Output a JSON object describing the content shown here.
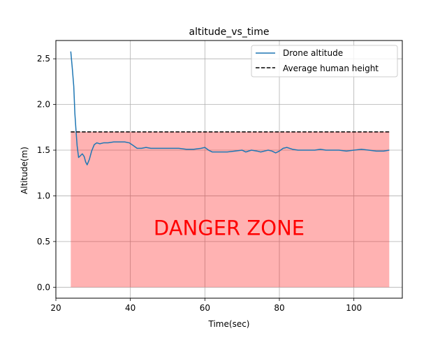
{
  "chart_data": {
    "type": "line",
    "title": "altitude_vs_time",
    "xlabel": "Time(sec)",
    "ylabel": "Altitude(m)",
    "xlim": [
      20,
      113
    ],
    "ylim": [
      -0.12,
      2.7
    ],
    "x_ticks": [
      20,
      40,
      60,
      80,
      100
    ],
    "y_ticks": [
      0.0,
      0.5,
      1.0,
      1.5,
      2.0,
      2.5
    ],
    "x_tick_labels": [
      "20",
      "40",
      "60",
      "80",
      "100"
    ],
    "y_tick_labels": [
      "0.0",
      "0.5",
      "1.0",
      "1.5",
      "2.0",
      "2.5"
    ],
    "grid": true,
    "legend_position": "top-right",
    "series": [
      {
        "name": "Drone altitude",
        "color": "#1f77b4",
        "style": "solid",
        "points": [
          [
            24.0,
            2.58
          ],
          [
            24.4,
            2.4
          ],
          [
            24.8,
            2.2
          ],
          [
            25.1,
            1.9
          ],
          [
            25.4,
            1.72
          ],
          [
            25.7,
            1.55
          ],
          [
            26.1,
            1.42
          ],
          [
            26.6,
            1.44
          ],
          [
            27.1,
            1.46
          ],
          [
            27.6,
            1.43
          ],
          [
            28.0,
            1.37
          ],
          [
            28.4,
            1.34
          ],
          [
            29.0,
            1.4
          ],
          [
            29.6,
            1.49
          ],
          [
            30.3,
            1.56
          ],
          [
            31.0,
            1.58
          ],
          [
            31.8,
            1.57
          ],
          [
            32.8,
            1.58
          ],
          [
            34.0,
            1.58
          ],
          [
            35.5,
            1.59
          ],
          [
            37.0,
            1.59
          ],
          [
            38.5,
            1.59
          ],
          [
            39.7,
            1.58
          ],
          [
            40.8,
            1.55
          ],
          [
            41.8,
            1.52
          ],
          [
            43.0,
            1.52
          ],
          [
            44.2,
            1.53
          ],
          [
            45.5,
            1.52
          ],
          [
            47.0,
            1.52
          ],
          [
            49.0,
            1.52
          ],
          [
            51.0,
            1.52
          ],
          [
            53.0,
            1.52
          ],
          [
            55.0,
            1.51
          ],
          [
            57.0,
            1.51
          ],
          [
            59.0,
            1.52
          ],
          [
            60.0,
            1.53
          ],
          [
            61.0,
            1.5
          ],
          [
            62.0,
            1.48
          ],
          [
            64.0,
            1.48
          ],
          [
            66.0,
            1.48
          ],
          [
            68.0,
            1.49
          ],
          [
            70.0,
            1.5
          ],
          [
            71.0,
            1.48
          ],
          [
            72.5,
            1.5
          ],
          [
            74.0,
            1.49
          ],
          [
            75.0,
            1.48
          ],
          [
            77.0,
            1.5
          ],
          [
            78.0,
            1.49
          ],
          [
            79.0,
            1.47
          ],
          [
            80.0,
            1.49
          ],
          [
            81.0,
            1.52
          ],
          [
            82.0,
            1.53
          ],
          [
            83.5,
            1.51
          ],
          [
            85.0,
            1.5
          ],
          [
            86.5,
            1.5
          ],
          [
            88.0,
            1.5
          ],
          [
            89.5,
            1.5
          ],
          [
            91.0,
            1.51
          ],
          [
            92.5,
            1.5
          ],
          [
            94.0,
            1.5
          ],
          [
            96.0,
            1.5
          ],
          [
            98.0,
            1.49
          ],
          [
            100.0,
            1.5
          ],
          [
            102.0,
            1.51
          ],
          [
            104.0,
            1.5
          ],
          [
            106.0,
            1.49
          ],
          [
            108.0,
            1.49
          ],
          [
            109.5,
            1.5
          ]
        ]
      },
      {
        "name": "Average human height",
        "color": "#000000",
        "style": "dashed",
        "points": [
          [
            24.0,
            1.7
          ],
          [
            109.5,
            1.7
          ]
        ]
      }
    ],
    "shaded_region": {
      "x_range": [
        24.0,
        109.5
      ],
      "y_range": [
        0.0,
        1.7
      ],
      "color": "#ff0000",
      "opacity": 0.3
    },
    "annotation": {
      "text": "DANGER ZONE",
      "x": 66.5,
      "y": 0.57,
      "color": "#ff0000"
    }
  }
}
